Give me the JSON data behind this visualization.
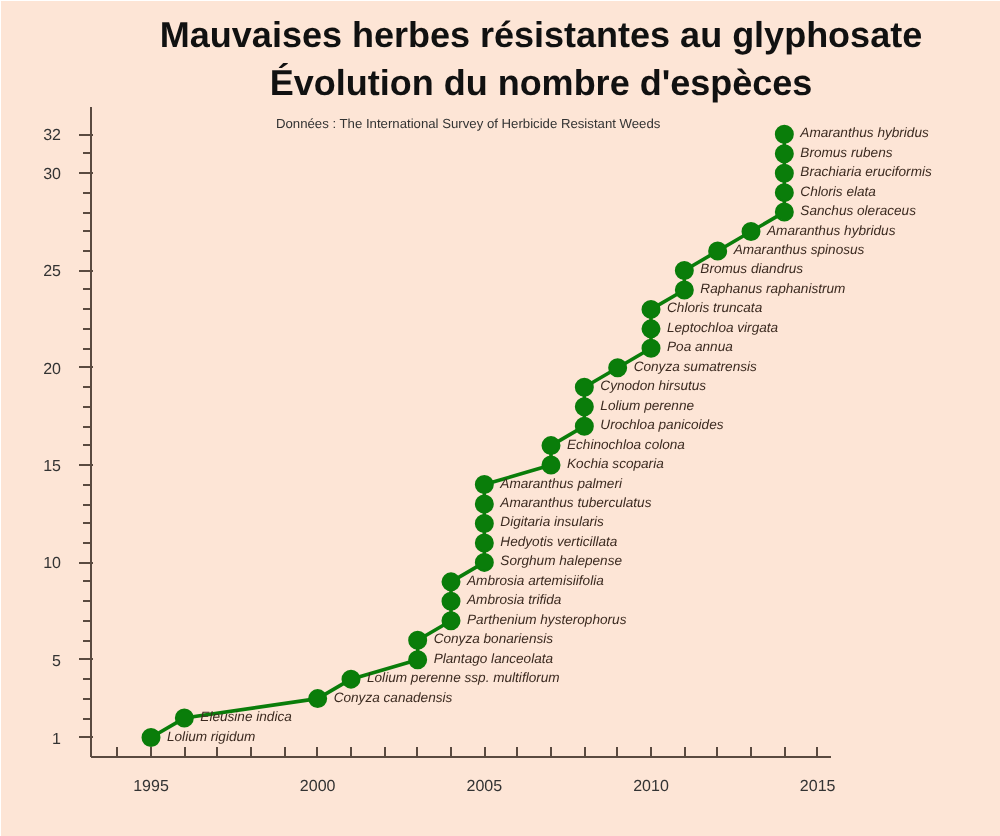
{
  "chart_data": {
    "type": "line",
    "title": "Mauvaises herbes résistantes au glyphosate",
    "subtitle": "Évolution du nombre d'espèces",
    "x": [
      1995,
      1996,
      2000,
      2001,
      2003,
      2003,
      2004,
      2004,
      2004,
      2005,
      2005,
      2005,
      2005,
      2005,
      2007,
      2007,
      2008,
      2008,
      2008,
      2009,
      2010,
      2010,
      2010,
      2011,
      2011,
      2012,
      2013,
      2014,
      2014,
      2014,
      2014,
      2014
    ],
    "series": [
      {
        "color": "#0a7d0a",
        "values": [
          1,
          2,
          3,
          4,
          5,
          6,
          7,
          8,
          9,
          10,
          11,
          12,
          13,
          14,
          15,
          16,
          17,
          18,
          19,
          20,
          21,
          22,
          23,
          24,
          25,
          26,
          27,
          28,
          29,
          30,
          31,
          32
        ]
      }
    ],
    "marker": "circle",
    "xlim": [
      1993.2,
      2015.4
    ],
    "ylim": [
      0,
      33.4
    ],
    "xticks": [
      {
        "value": 1994,
        "label": null
      },
      1995,
      {
        "value": 1996,
        "label": null
      },
      {
        "value": 1997,
        "label": null
      },
      {
        "value": 1998,
        "label": null
      },
      {
        "value": 1999,
        "label": null
      },
      2000,
      {
        "value": 2001,
        "label": null
      },
      {
        "value": 2002,
        "label": null
      },
      {
        "value": 2003,
        "label": null
      },
      {
        "value": 2004,
        "label": null
      },
      2005,
      {
        "value": 2006,
        "label": null
      },
      {
        "value": 2007,
        "label": null
      },
      {
        "value": 2008,
        "label": null
      },
      {
        "value": 2009,
        "label": null
      },
      2010,
      {
        "value": 2011,
        "label": null
      },
      {
        "value": 2012,
        "label": null
      },
      {
        "value": 2013,
        "label": null
      },
      {
        "value": 2014,
        "label": null
      },
      2015
    ],
    "yticks": [
      1,
      {
        "value": 2,
        "label": null
      },
      {
        "value": 3,
        "label": null
      },
      {
        "value": 4,
        "label": null
      },
      5,
      {
        "value": 6,
        "label": null
      },
      {
        "value": 7,
        "label": null
      },
      {
        "value": 8,
        "label": null
      },
      {
        "value": 9,
        "label": null
      },
      10,
      {
        "value": 11,
        "label": null
      },
      {
        "value": 12,
        "label": null
      },
      {
        "value": 13,
        "label": null
      },
      {
        "value": 14,
        "label": null
      },
      15,
      {
        "value": 16,
        "label": null
      },
      {
        "value": 17,
        "label": null
      },
      {
        "value": 18,
        "label": null
      },
      {
        "value": 19,
        "label": null
      },
      20,
      {
        "value": 21,
        "label": null
      },
      {
        "value": 22,
        "label": null
      },
      {
        "value": 23,
        "label": null
      },
      {
        "value": 24,
        "label": null
      },
      25,
      {
        "value": 26,
        "label": null
      },
      {
        "value": 27,
        "label": null
      },
      {
        "value": 28,
        "label": null
      },
      {
        "value": 29,
        "label": null
      },
      30,
      {
        "value": 31,
        "label": null
      },
      32
    ],
    "annotations": [
      "Données : The International Survey of Herbicide Resistant Weeds",
      {
        "text": "Lolium rigidum",
        "x": 1995,
        "y": 1
      },
      {
        "text": "Eleusine indica",
        "x": 1996,
        "y": 2
      },
      {
        "text": "Conyza canadensis",
        "x": 2000,
        "y": 3
      },
      {
        "text": "Lolium perenne ssp. multiflorum",
        "x": 2001,
        "y": 4
      },
      {
        "text": "Plantago lanceolata",
        "x": 2003,
        "y": 5
      },
      {
        "text": "Conyza bonariensis",
        "x": 2003,
        "y": 6
      },
      {
        "text": "Parthenium hysterophorus",
        "x": 2004,
        "y": 7
      },
      {
        "text": "Ambrosia trifida",
        "x": 2004,
        "y": 8
      },
      {
        "text": "Ambrosia artemisiifolia",
        "x": 2004,
        "y": 9
      },
      {
        "text": "Sorghum halepense",
        "x": 2005,
        "y": 10
      },
      {
        "text": "Hedyotis verticillata",
        "x": 2005,
        "y": 11
      },
      {
        "text": "Digitaria insularis",
        "x": 2005,
        "y": 12
      },
      {
        "text": "Amaranthus tuberculatus",
        "x": 2005,
        "y": 13
      },
      {
        "text": "Amaranthus palmeri",
        "x": 2005,
        "y": 14
      },
      {
        "text": "Kochia scoparia",
        "x": 2007,
        "y": 15
      },
      {
        "text": "Echinochloa colona",
        "x": 2007,
        "y": 16
      },
      {
        "text": "Urochloa panicoides",
        "x": 2008,
        "y": 17
      },
      {
        "text": "Lolium perenne",
        "x": 2008,
        "y": 18
      },
      {
        "text": "Cynodon hirsutus",
        "x": 2008,
        "y": 19
      },
      {
        "text": "Conyza sumatrensis",
        "x": 2009,
        "y": 20
      },
      {
        "text": "Poa annua",
        "x": 2010,
        "y": 21
      },
      {
        "text": "Leptochloa virgata",
        "x": 2010,
        "y": 22
      },
      {
        "text": "Chloris truncata",
        "x": 2010,
        "y": 23
      },
      {
        "text": "Raphanus raphanistrum",
        "x": 2011,
        "y": 24
      },
      {
        "text": "Bromus diandrus",
        "x": 2011,
        "y": 25
      },
      {
        "text": "Amaranthus spinosus",
        "x": 2012,
        "y": 26
      },
      {
        "text": "Amaranthus hybridus",
        "x": 2013,
        "y": 27
      },
      {
        "text": "Sanchus oleraceus",
        "x": 2014,
        "y": 28
      },
      {
        "text": "Chloris elata",
        "x": 2014,
        "y": 29
      },
      {
        "text": "Brachiaria eruciformis",
        "x": 2014,
        "y": 30
      },
      {
        "text": "Bromus rubens",
        "x": 2014,
        "y": 31
      },
      {
        "text": "Amaranthus hybridus",
        "x": 2014,
        "y": 32
      }
    ]
  }
}
